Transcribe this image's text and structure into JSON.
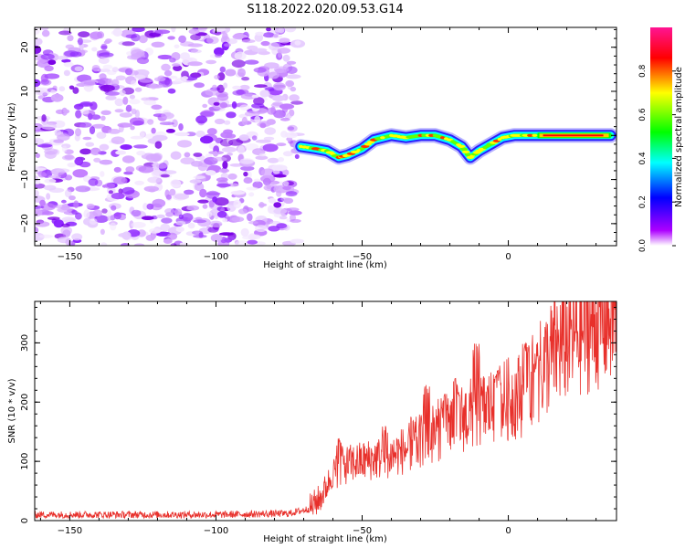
{
  "title": "S118.2022.020.09.53.G14",
  "chart_data": [
    {
      "type": "heatmap",
      "xlabel": "Height of straight line (km)",
      "ylabel": "Frequency (Hz)",
      "xlim": [
        -162,
        37
      ],
      "ylim": [
        -25,
        24.5
      ],
      "xticks": [
        -150,
        -100,
        -50,
        0
      ],
      "yticks": [
        -20,
        -10,
        0,
        10,
        20
      ],
      "colorbar": {
        "label": "Normalized spectral amplitude",
        "range": [
          0,
          1
        ],
        "ticks": [
          "0.0",
          "0.2",
          "0.4",
          "0.6",
          "0.8"
        ],
        "colors": [
          "#ffffff",
          "#ad00ff",
          "#0000ff",
          "#00ffff",
          "#00ff00",
          "#ffff00",
          "#ff0000",
          "#ff1493"
        ]
      },
      "noise_region": [
        -162,
        -72
      ],
      "ridge": {
        "x": [
          -71,
          -66,
          -62,
          -58,
          -55,
          -50,
          -46,
          -40,
          -35,
          -30,
          -25,
          -20,
          -16,
          -13,
          -10,
          -6,
          -2,
          2,
          6,
          12,
          20,
          28,
          35
        ],
        "y": [
          -2.5,
          -3,
          -3.5,
          -5,
          -4.5,
          -3,
          -1,
          0,
          -0.5,
          0,
          0,
          -1,
          -2.5,
          -5,
          -3.5,
          -2,
          -0.5,
          0,
          0,
          0,
          0,
          0,
          0
        ]
      }
    },
    {
      "type": "line",
      "xlabel": "Height of straight line (km)",
      "ylabel": "SNR (10 * v/v)",
      "xlim": [
        -162,
        37
      ],
      "ylim": [
        0,
        370
      ],
      "xticks": [
        -150,
        -100,
        -50,
        0
      ],
      "yticks": [
        0,
        100,
        200,
        300
      ],
      "color": "#e8302b",
      "trend": {
        "x": [
          -162,
          -100,
          -75,
          -68,
          -64,
          -60,
          -55,
          -50,
          -45,
          -40,
          -35,
          -30,
          -25,
          -20,
          -15,
          -10,
          -5,
          0,
          5,
          10,
          15,
          20,
          25,
          30,
          37
        ],
        "y": [
          10,
          10,
          12,
          20,
          40,
          80,
          95,
          100,
          105,
          110,
          120,
          135,
          150,
          165,
          175,
          185,
          195,
          205,
          215,
          245,
          280,
          305,
          320,
          335,
          350
        ]
      },
      "spikes": [
        [
          -58,
          140
        ],
        [
          -42,
          160
        ],
        [
          -33,
          180
        ],
        [
          -28,
          230
        ],
        [
          -22,
          210
        ],
        [
          -18,
          240
        ],
        [
          -11,
          300
        ],
        [
          -4,
          250
        ],
        [
          6,
          300
        ],
        [
          10,
          280
        ]
      ]
    }
  ]
}
